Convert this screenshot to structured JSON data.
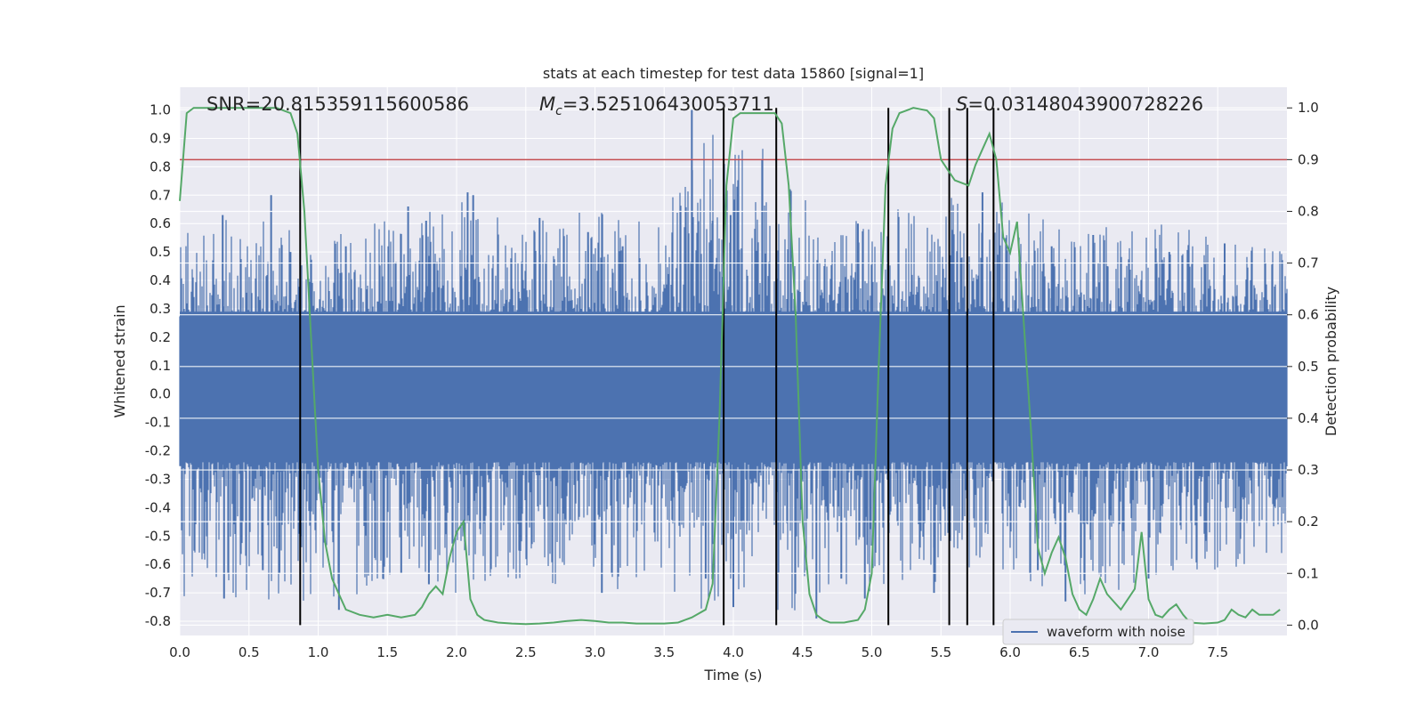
{
  "chart_data": {
    "type": "line",
    "title": "stats at each timestep for test data 15860 [signal=1]",
    "xlabel": "Time (s)",
    "ylabel": "Whitened strain",
    "y2label": "Detection probability",
    "xlim": [
      0.0,
      8.0
    ],
    "ylim": [
      -0.85,
      1.08
    ],
    "y2lim": [
      -0.02,
      1.04
    ],
    "xticks": [
      "0.0",
      "0.5",
      "1.0",
      "1.5",
      "2.0",
      "2.5",
      "3.0",
      "3.5",
      "4.0",
      "4.5",
      "5.0",
      "5.5",
      "6.0",
      "6.5",
      "7.0",
      "7.5"
    ],
    "yticks": [
      "-0.8",
      "-0.7",
      "-0.6",
      "-0.5",
      "-0.4",
      "-0.3",
      "-0.2",
      "-0.1",
      "0.0",
      "0.1",
      "0.2",
      "0.3",
      "0.4",
      "0.5",
      "0.6",
      "0.7",
      "0.8",
      "0.9",
      "1.0"
    ],
    "y2ticks": [
      "0.0",
      "0.1",
      "0.2",
      "0.3",
      "0.4",
      "0.5",
      "0.6",
      "0.7",
      "0.8",
      "0.9",
      "1.0"
    ],
    "annotations": {
      "snr": "SNR=20.815359115600586",
      "mc_symbol": "M",
      "mc_subscript": "c",
      "mc_value": "=3.525106430053711",
      "s_symbol": "S",
      "s_value": "=0.03148043900728226"
    },
    "legend": {
      "label": "waveform with noise",
      "position": "lower-right"
    },
    "threshold": 0.9,
    "vertical_lines": [
      0.87,
      3.93,
      4.31,
      5.12,
      5.56,
      5.69,
      5.88
    ],
    "waveform_noise": {
      "name": "waveform with noise",
      "color": "#4c72b0",
      "envelope": {
        "x": [
          0.0,
          0.5,
          1.0,
          1.5,
          2.0,
          2.5,
          3.0,
          3.5,
          3.7,
          4.0,
          4.5,
          5.0,
          5.5,
          6.0,
          6.5,
          7.0,
          7.5,
          8.0
        ],
        "upper": [
          0.58,
          0.63,
          0.55,
          0.66,
          0.71,
          0.62,
          0.65,
          0.63,
          1.0,
          0.97,
          0.72,
          0.62,
          0.71,
          0.69,
          0.57,
          0.62,
          0.56,
          0.5
        ],
        "lower": [
          -0.78,
          -0.72,
          -0.74,
          -0.68,
          -0.7,
          -0.66,
          -0.71,
          -0.66,
          -0.78,
          -0.75,
          -0.78,
          -0.71,
          -0.66,
          -0.64,
          -0.73,
          -0.66,
          -0.62,
          -0.6
        ]
      },
      "spikes": [
        [
          0.31,
          0.63
        ],
        [
          0.66,
          0.7
        ],
        [
          0.8,
          0.5
        ],
        [
          1.2,
          0.52
        ],
        [
          1.65,
          0.66
        ],
        [
          1.78,
          0.61
        ],
        [
          2.08,
          0.71
        ],
        [
          2.12,
          0.7
        ],
        [
          2.6,
          0.62
        ],
        [
          2.95,
          0.57
        ],
        [
          3.2,
          0.52
        ],
        [
          3.7,
          1.0
        ],
        [
          3.85,
          0.61
        ],
        [
          3.98,
          0.63
        ],
        [
          4.9,
          0.6
        ],
        [
          5.8,
          0.71
        ],
        [
          5.92,
          0.6
        ],
        [
          6.3,
          0.52
        ],
        [
          6.6,
          0.56
        ],
        [
          7.15,
          0.5
        ],
        [
          7.55,
          0.53
        ],
        [
          0.32,
          -0.72
        ],
        [
          0.6,
          -0.62
        ],
        [
          0.72,
          -0.63
        ],
        [
          1.15,
          -0.76
        ],
        [
          1.6,
          -0.63
        ],
        [
          1.8,
          -0.67
        ],
        [
          2.06,
          -0.52
        ],
        [
          3.05,
          -0.7
        ],
        [
          3.8,
          -0.65
        ],
        [
          4.0,
          -0.75
        ],
        [
          4.6,
          -0.79
        ],
        [
          4.78,
          -0.65
        ],
        [
          4.95,
          -0.72
        ],
        [
          5.45,
          -0.7
        ],
        [
          6.2,
          -0.62
        ],
        [
          6.4,
          -0.73
        ],
        [
          7.0,
          -0.65
        ]
      ]
    },
    "detection_probability": {
      "name": "Detection probability",
      "color": "#55a868",
      "x": [
        0.0,
        0.05,
        0.1,
        0.2,
        0.3,
        0.4,
        0.5,
        0.6,
        0.7,
        0.75,
        0.8,
        0.85,
        0.9,
        0.95,
        1.0,
        1.05,
        1.1,
        1.15,
        1.2,
        1.3,
        1.4,
        1.5,
        1.6,
        1.7,
        1.75,
        1.8,
        1.85,
        1.9,
        1.95,
        2.0,
        2.05,
        2.1,
        2.15,
        2.2,
        2.3,
        2.4,
        2.5,
        2.6,
        2.7,
        2.8,
        2.9,
        3.0,
        3.1,
        3.2,
        3.3,
        3.4,
        3.5,
        3.6,
        3.7,
        3.8,
        3.85,
        3.9,
        3.95,
        4.0,
        4.05,
        4.1,
        4.2,
        4.3,
        4.35,
        4.4,
        4.45,
        4.5,
        4.55,
        4.6,
        4.65,
        4.7,
        4.8,
        4.9,
        4.95,
        5.0,
        5.05,
        5.1,
        5.15,
        5.2,
        5.25,
        5.3,
        5.4,
        5.45,
        5.5,
        5.55,
        5.6,
        5.7,
        5.75,
        5.8,
        5.85,
        5.9,
        5.95,
        6.0,
        6.05,
        6.1,
        6.15,
        6.2,
        6.25,
        6.3,
        6.35,
        6.4,
        6.45,
        6.5,
        6.55,
        6.6,
        6.65,
        6.7,
        6.8,
        6.9,
        6.95,
        7.0,
        7.05,
        7.1,
        7.15,
        7.2,
        7.25,
        7.3,
        7.4,
        7.5,
        7.55,
        7.6,
        7.65,
        7.7,
        7.75,
        7.8,
        7.9,
        7.95
      ],
      "y": [
        0.82,
        0.99,
        1.0,
        1.0,
        1.0,
        1.0,
        1.0,
        1.0,
        1.0,
        0.995,
        0.99,
        0.95,
        0.8,
        0.55,
        0.3,
        0.16,
        0.09,
        0.06,
        0.03,
        0.02,
        0.015,
        0.02,
        0.015,
        0.02,
        0.035,
        0.06,
        0.075,
        0.06,
        0.13,
        0.18,
        0.2,
        0.05,
        0.02,
        0.01,
        0.005,
        0.003,
        0.002,
        0.003,
        0.005,
        0.008,
        0.01,
        0.008,
        0.005,
        0.005,
        0.003,
        0.003,
        0.003,
        0.005,
        0.015,
        0.03,
        0.08,
        0.4,
        0.85,
        0.98,
        0.99,
        0.99,
        0.99,
        0.99,
        0.97,
        0.85,
        0.6,
        0.2,
        0.06,
        0.02,
        0.01,
        0.005,
        0.005,
        0.01,
        0.03,
        0.1,
        0.5,
        0.85,
        0.96,
        0.99,
        0.995,
        1.0,
        0.995,
        0.98,
        0.9,
        0.88,
        0.86,
        0.85,
        0.89,
        0.92,
        0.95,
        0.9,
        0.75,
        0.72,
        0.78,
        0.58,
        0.38,
        0.15,
        0.1,
        0.14,
        0.17,
        0.13,
        0.06,
        0.03,
        0.02,
        0.05,
        0.09,
        0.06,
        0.03,
        0.07,
        0.18,
        0.05,
        0.02,
        0.015,
        0.03,
        0.04,
        0.02,
        0.005,
        0.003,
        0.005,
        0.01,
        0.03,
        0.02,
        0.015,
        0.03,
        0.02,
        0.02,
        0.03
      ]
    },
    "threshold_color": "#c44e52",
    "vline_color": "#000000"
  }
}
